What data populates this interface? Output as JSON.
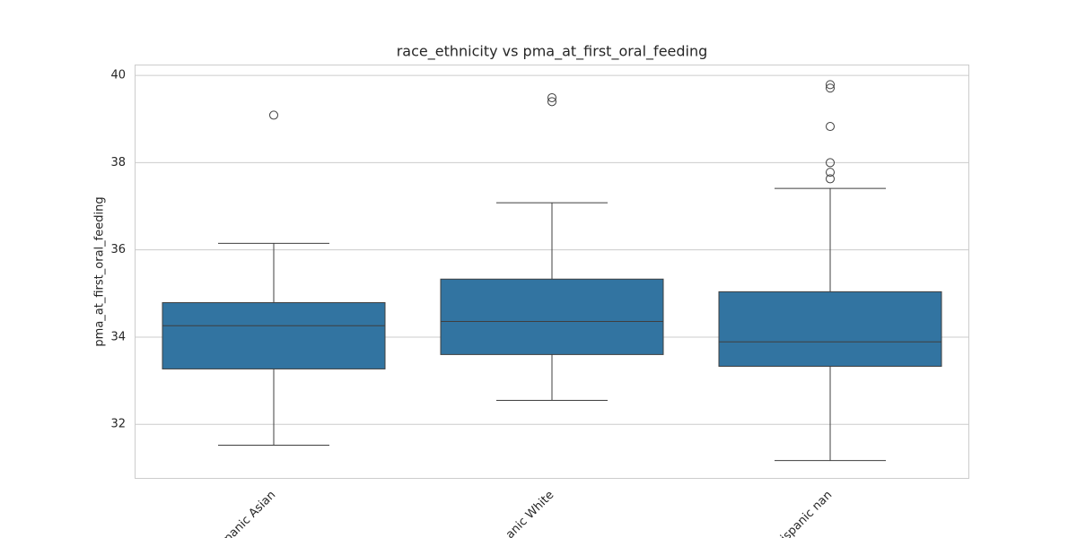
{
  "chart_data": {
    "type": "box",
    "title": "race_ethnicity vs pma_at_first_oral_feeding",
    "ylabel": "pma_at_first_oral_feeding",
    "categories": [
      "panic Asian",
      "anic White",
      "ispanic nan"
    ],
    "color": "#3274a1",
    "boxes": [
      {
        "whisker_low": 31.52,
        "q1": 33.27,
        "median": 34.26,
        "q3": 34.79,
        "whisker_high": 36.15,
        "outliers": [
          39.09
        ]
      },
      {
        "whisker_low": 32.55,
        "q1": 33.6,
        "median": 34.36,
        "q3": 35.33,
        "whisker_high": 37.08,
        "outliers": [
          39.49,
          39.4
        ]
      },
      {
        "whisker_low": 31.17,
        "q1": 33.33,
        "median": 33.89,
        "q3": 35.04,
        "whisker_high": 37.41,
        "outliers": [
          39.79,
          39.71,
          38.83,
          38.0,
          37.78,
          37.63
        ]
      }
    ],
    "ylim": [
      30.75,
      40.25
    ],
    "yticks": [
      32,
      34,
      36,
      38,
      40
    ],
    "grid": true
  }
}
